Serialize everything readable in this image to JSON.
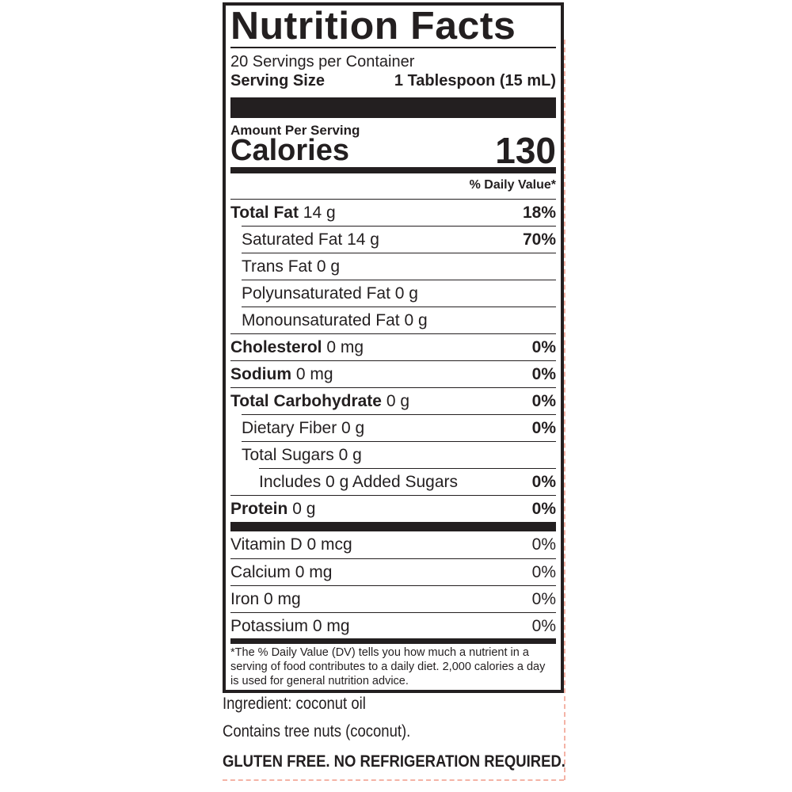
{
  "label": {
    "title": "Nutrition Facts",
    "servings_per_container": "20 Servings per Container",
    "serving_size_label": "Serving Size",
    "serving_size_value": "1 Tablespoon (15 mL)",
    "amount_per_serving": "Amount Per Serving",
    "calories_label": "Calories",
    "calories_value": "130",
    "daily_value_header": "% Daily Value*",
    "nutrients": [
      {
        "name": "Total Fat",
        "amount": "14 g",
        "dv": "18%",
        "bold": true,
        "indent": 0
      },
      {
        "name": "Saturated Fat",
        "amount": "14 g",
        "dv": "70%",
        "bold": false,
        "indent": 1
      },
      {
        "name": "Trans Fat",
        "amount": "0 g",
        "dv": "",
        "bold": false,
        "indent": 1
      },
      {
        "name": "Polyunsaturated Fat",
        "amount": "0 g",
        "dv": "",
        "bold": false,
        "indent": 1
      },
      {
        "name": "Monounsaturated Fat",
        "amount": "0 g",
        "dv": "",
        "bold": false,
        "indent": 1
      },
      {
        "name": "Cholesterol",
        "amount": "0 mg",
        "dv": "0%",
        "bold": true,
        "indent": 0
      },
      {
        "name": "Sodium",
        "amount": "0 mg",
        "dv": "0%",
        "bold": true,
        "indent": 0
      },
      {
        "name": "Total Carbohydrate",
        "amount": "0 g",
        "dv": "0%",
        "bold": true,
        "indent": 0
      },
      {
        "name": "Dietary Fiber",
        "amount": "0 g",
        "dv": "0%",
        "bold": false,
        "indent": 1
      },
      {
        "name": "Total Sugars",
        "amount": "0 g",
        "dv": "",
        "bold": false,
        "indent": 1
      },
      {
        "name": "Includes 0 g Added Sugars",
        "amount": "",
        "dv": "0%",
        "bold": false,
        "indent": 2
      },
      {
        "name": "Protein",
        "amount": "0 g",
        "dv": "0%",
        "bold": true,
        "indent": 0
      }
    ],
    "vitamins": [
      {
        "name": "Vitamin D",
        "amount": "0 mcg",
        "dv": "0%"
      },
      {
        "name": "Calcium",
        "amount": "0 mg",
        "dv": "0%"
      },
      {
        "name": "Iron",
        "amount": "0 mg",
        "dv": "0%"
      },
      {
        "name": "Potassium",
        "amount": "0 mg",
        "dv": "0%"
      }
    ],
    "footnote": "*The % Daily Value (DV) tells you how much a nutrient in a serving of food contributes to a daily diet. 2,000 calories a day is used for general nutrition advice."
  },
  "below": {
    "ingredient": "Ingredient: coconut oil",
    "allergen": "Contains tree nuts (coconut).",
    "claim": "GLUTEN FREE. NO REFRIGERATION REQUIRED."
  },
  "colors": {
    "ink": "#231f20",
    "dieline": "#f4b3a6"
  }
}
